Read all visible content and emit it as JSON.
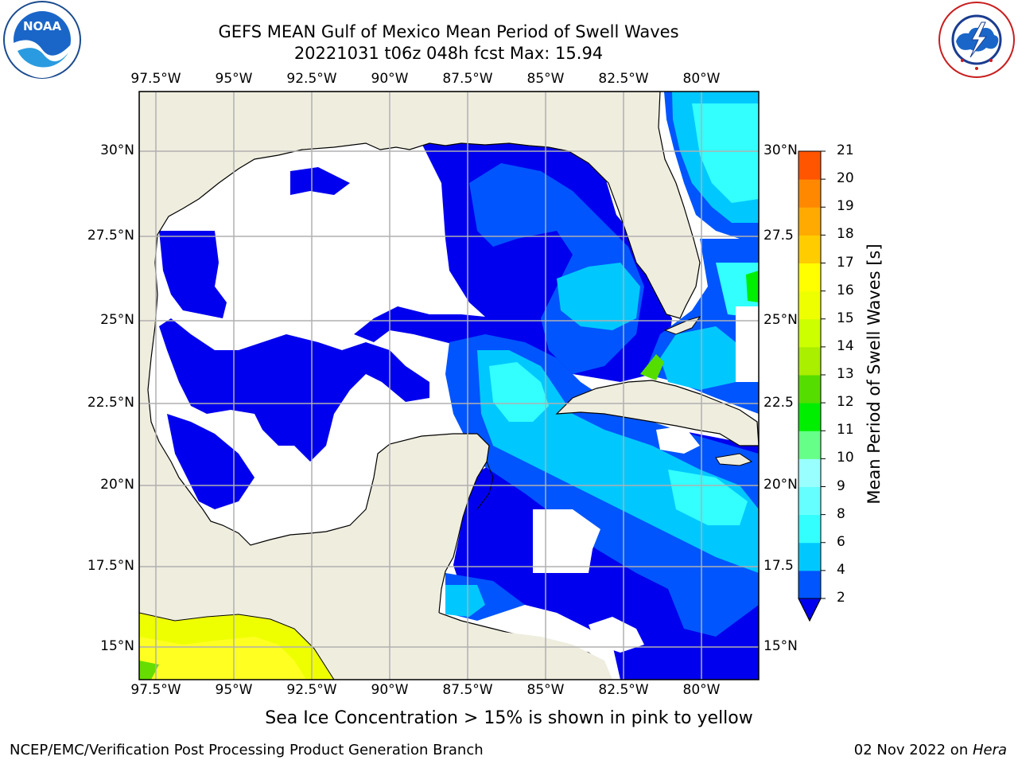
{
  "header": {
    "title": "GEFS MEAN Gulf of Mexico Mean Period of Swell Waves",
    "subtitle": "20221031 t06z 048h fcst   Max: 15.94"
  },
  "logos": {
    "left": {
      "text": "NOAA",
      "ring_text": "NATIONAL OCEANIC AND ATMOSPHERIC ADMINISTRATION · U.S. DEPARTMENT OF COMMERCE"
    },
    "right": {
      "ring_text": "NATIONAL WEATHER SERVICE"
    }
  },
  "map": {
    "lon_labels": [
      "97.5°W",
      "95°W",
      "92.5°W",
      "90°W",
      "87.5°W",
      "85°W",
      "82.5°W",
      "80°W"
    ],
    "lat_labels_left": [
      "30°N",
      "27.5°N",
      "25°N",
      "22.5°N",
      "20°N",
      "17.5°N",
      "15°N"
    ],
    "lat_labels_right": [
      "30°N",
      "27.5",
      "25°N",
      "22.5",
      "20°N",
      "17.5",
      "15°N"
    ],
    "colors": {
      "land": "#efedde",
      "grid": "#b0b0b0",
      "coast": "#000000"
    }
  },
  "colorbar": {
    "label": "Mean Period of Swell Waves [s]",
    "ticks": [
      "2",
      "4",
      "6",
      "8",
      "9",
      "10",
      "11",
      "12",
      "13",
      "14",
      "15",
      "16",
      "17",
      "18",
      "19",
      "20",
      "21"
    ],
    "colors": [
      "#0055ff",
      "#00c8ff",
      "#33ffff",
      "#66ffff",
      "#99ffff",
      "#66ff88",
      "#00ee00",
      "#55dd00",
      "#aaee00",
      "#ccff00",
      "#eeff00",
      "#ffff00",
      "#ffcc00",
      "#ffaa00",
      "#ff8800",
      "#ff5500",
      "#ff2200",
      "#ff0000"
    ],
    "under_color": "#0000ee"
  },
  "note": "Sea Ice Concentration > 15% is shown in pink to yellow",
  "footer": {
    "left": "NCEP/EMC/Verification Post Processing Product Generation Branch",
    "right_prefix": "02 Nov 2022 on ",
    "right_host": "Hera"
  }
}
